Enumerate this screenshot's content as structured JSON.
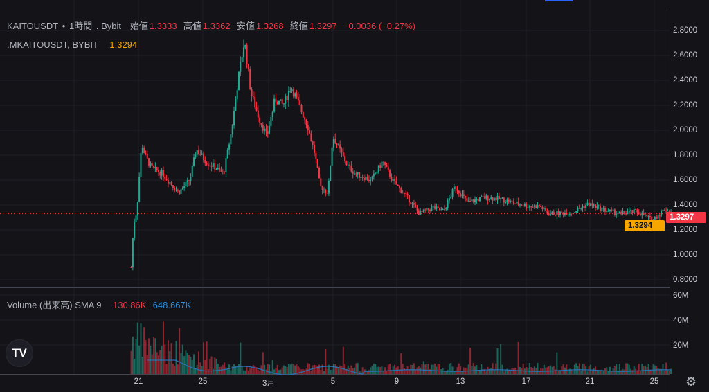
{
  "legend": {
    "symbol": "KAITOUSDT",
    "sep": "•",
    "interval": "1時間",
    "exchange": ". Bybit",
    "open_label": "始値",
    "open": "1.3333",
    "high_label": "高値",
    "high": "1.3362",
    "low_label": "安値",
    "low": "1.3268",
    "close_label": "終値",
    "close": "1.3297",
    "change": "−0.0036 (−0.27%)",
    "mark_symbol": ".MKAITOUSDT, BYBIT",
    "mark_value": "1.3294"
  },
  "volume_legend": {
    "title": "Volume (出来高) SMA 9",
    "volume": "130.86K",
    "sma": "648.667K"
  },
  "price_axis": [
    "2.8000",
    "2.6000",
    "2.4000",
    "2.2000",
    "2.0000",
    "1.8000",
    "1.6000",
    "1.4000",
    "1.2000",
    "1.0000",
    "0.8000"
  ],
  "volume_axis": [
    "60M",
    "40M",
    "20M"
  ],
  "time_axis": [
    "21",
    "25",
    "3月",
    "5",
    "9",
    "13",
    "17",
    "21",
    "25"
  ],
  "price_tags": {
    "last": "1.3297",
    "mark": "1.3294"
  },
  "logo_text": "TV",
  "colors": {
    "up": "#22ab94",
    "down": "#f23645",
    "sma": "#2a6fb0",
    "mark": "#f7a600"
  },
  "chart_data": {
    "type": "candlestick",
    "note": "approximate close path, day offset from Feb 21",
    "points": [
      [
        -0.45,
        0.9
      ],
      [
        -0.3,
        1.25
      ],
      [
        -0.1,
        1.35
      ],
      [
        0.2,
        1.9
      ],
      [
        0.4,
        1.8
      ],
      [
        0.8,
        1.7
      ],
      [
        1.5,
        1.65
      ],
      [
        2.5,
        1.5
      ],
      [
        3.2,
        1.6
      ],
      [
        3.6,
        1.85
      ],
      [
        4.2,
        1.75
      ],
      [
        4.8,
        1.7
      ],
      [
        5.3,
        1.65
      ],
      [
        5.8,
        2.0
      ],
      [
        6.2,
        2.4
      ],
      [
        6.6,
        2.72
      ],
      [
        7.0,
        2.3
      ],
      [
        7.5,
        2.1
      ],
      [
        8.0,
        1.95
      ],
      [
        8.5,
        2.25
      ],
      [
        9.0,
        2.2
      ],
      [
        9.5,
        2.35
      ],
      [
        10.0,
        2.2
      ],
      [
        10.5,
        2.05
      ],
      [
        11.0,
        1.8
      ],
      [
        11.3,
        1.55
      ],
      [
        11.8,
        1.5
      ],
      [
        12.1,
        1.95
      ],
      [
        12.5,
        1.85
      ],
      [
        13.0,
        1.72
      ],
      [
        13.5,
        1.65
      ],
      [
        14.5,
        1.6
      ],
      [
        15.2,
        1.75
      ],
      [
        15.8,
        1.6
      ],
      [
        16.8,
        1.45
      ],
      [
        17.5,
        1.33
      ],
      [
        18.3,
        1.38
      ],
      [
        19.0,
        1.35
      ],
      [
        19.7,
        1.55
      ],
      [
        20.5,
        1.42
      ],
      [
        21.5,
        1.46
      ],
      [
        22.5,
        1.45
      ],
      [
        23.3,
        1.42
      ],
      [
        24.3,
        1.39
      ],
      [
        25.0,
        1.39
      ],
      [
        25.5,
        1.33
      ],
      [
        27.0,
        1.34
      ],
      [
        28.0,
        1.41
      ],
      [
        29.0,
        1.36
      ],
      [
        30.0,
        1.33
      ],
      [
        31.0,
        1.35
      ],
      [
        32.0,
        1.28
      ],
      [
        32.8,
        1.37
      ],
      [
        33.2,
        1.33
      ]
    ],
    "ylim": [
      0.8,
      2.8
    ]
  }
}
